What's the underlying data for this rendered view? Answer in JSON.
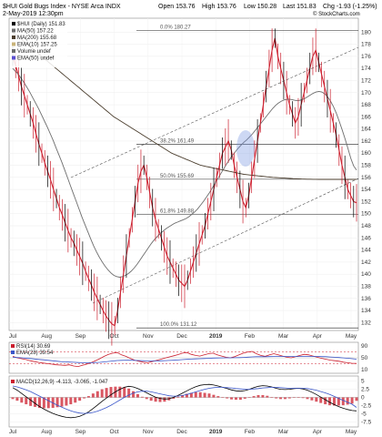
{
  "chart_data": [
    {
      "type": "line",
      "title": "$HUI Gold Bugs Index - NYSE Arca INDX",
      "subtitle": "2-May-2019 12:30pm",
      "watermark": "© StockCharts.com",
      "quote": {
        "open": "Open 153.76",
        "high": "High 153.76",
        "low": "Low 150.28",
        "last": "Last 151.83",
        "chg": "Chg -1.93 (-1.25%)"
      },
      "legend": [
        {
          "text": "$HUI (Daily) 151.83",
          "color": "#000000"
        },
        {
          "text": "MA(50) 157.22",
          "color": "#6d6d6d"
        },
        {
          "text": "MA(200) 155.68",
          "color": "#4b3e2e"
        },
        {
          "text": "EMA(10) 157.25",
          "color": "#c9b47a"
        },
        {
          "text": "Volume undef",
          "color": "#6d6d6d"
        },
        {
          "text": "EMA(50) undef",
          "color": "#5a4fcf"
        }
      ],
      "fib_labels": [
        {
          "text": "0.0% 180.27",
          "value": 180.27
        },
        {
          "text": "38.2% 161.49",
          "value": 161.49
        },
        {
          "text": "50.0% 155.69",
          "value": 155.69
        },
        {
          "text": "61.8% 149.88",
          "value": 149.88
        },
        {
          "text": "100.0% 131.12",
          "value": 131.12
        }
      ],
      "y_ticks": [
        132,
        134,
        136,
        138,
        140,
        142,
        144,
        146,
        148,
        150,
        152,
        154,
        156,
        158,
        160,
        162,
        164,
        166,
        168,
        170,
        172,
        174,
        176,
        178,
        180
      ],
      "ylim": [
        131,
        182
      ],
      "x_labels": [
        "Jul",
        "Aug",
        "Sep",
        "Oct",
        "Nov",
        "Dec",
        "2019",
        "Feb",
        "Mar",
        "Apr",
        "May"
      ],
      "series": [
        {
          "name": "$HUI (Daily) 151.83",
          "color": "#cc1f2e",
          "values": [
            176,
            174.5,
            172.8,
            171,
            169.5,
            168,
            166.5,
            165,
            163.2,
            161.5,
            160,
            158.4,
            157,
            155.6,
            154,
            152.5,
            151,
            149.8,
            148.5,
            147.2,
            146,
            145.1,
            144,
            142.9,
            141.8,
            140.5,
            139.3,
            138.2,
            137,
            136,
            135,
            134,
            133.1,
            132.4,
            131.8,
            131.5,
            134,
            137,
            140,
            143,
            146,
            149,
            152,
            155,
            157,
            158,
            156,
            153.5,
            151,
            149,
            147.5,
            146,
            144.5,
            143,
            142,
            141,
            140,
            139,
            138.5,
            138,
            139,
            140.5,
            142,
            143.5,
            145,
            146.5,
            148,
            150,
            152,
            154,
            156,
            158,
            160,
            161,
            162,
            160.5,
            158,
            156,
            154,
            152,
            151,
            153,
            156,
            159,
            162,
            165,
            168,
            171,
            174,
            177,
            179,
            176,
            174,
            172,
            170,
            168,
            166.5,
            165,
            166,
            168,
            170,
            172,
            174,
            176,
            177,
            175,
            173,
            171,
            169,
            167,
            165,
            163,
            160.5,
            158,
            156,
            154,
            153,
            152,
            151.8
          ]
        },
        {
          "name": "MA(50) 157.22",
          "color": "#6d6d6d",
          "values": [
            174,
            173.5,
            173,
            172.3,
            171.6,
            170.8,
            170,
            169.1,
            168.2,
            167.3,
            166.3,
            165.3,
            164.3,
            163.2,
            162.1,
            160.9,
            159.7,
            158.5,
            157.2,
            155.9,
            154.6,
            153.3,
            152,
            150.7,
            149.4,
            148.2,
            147,
            145.8,
            144.7,
            143.7,
            142.8,
            142,
            141.3,
            140.7,
            140.2,
            139.8,
            139.6,
            139.5,
            139.6,
            139.8,
            140.1,
            140.5,
            141,
            141.6,
            142.3,
            143,
            143.7,
            144.4,
            145.1,
            145.7,
            146.2,
            146.7,
            147.1,
            147.5,
            147.8,
            148.1,
            148.4,
            148.6,
            148.8,
            149,
            149.2,
            149.5,
            149.9,
            150.3,
            150.8,
            151.4,
            152,
            152.7,
            153.4,
            154.2,
            155,
            155.8,
            156.6,
            157.4,
            158.2,
            158.9,
            159.6,
            160.2,
            160.8,
            161.3,
            161.8,
            162.2,
            162.7,
            163.2,
            163.8,
            164.4,
            165,
            165.6,
            166.2,
            166.8,
            167.4,
            167.9,
            168.3,
            168.6,
            168.8,
            168.9,
            168.9,
            168.8,
            168.7,
            168.7,
            168.8,
            169,
            169.3,
            169.6,
            169.9,
            170.1,
            170.2,
            170.1,
            169.8,
            169.3,
            168.6,
            167.7,
            166.6,
            165.3,
            163.9,
            162.4,
            160.8,
            159.2,
            157.9,
            157.2
          ]
        },
        {
          "name": "MA(200) 155.68",
          "color": "#4b3e2e",
          "values": [
            180,
            179.6,
            179.2,
            178.8,
            178.4,
            178,
            177.6,
            177.2,
            176.8,
            176.4,
            176,
            175.6,
            175.2,
            174.8,
            174.4,
            174,
            173.6,
            173.2,
            172.8,
            172.4,
            172,
            171.6,
            171.2,
            170.8,
            170.4,
            170,
            169.6,
            169.2,
            168.8,
            168.4,
            168,
            167.6,
            167.2,
            166.8,
            166.4,
            166,
            165.7,
            165.4,
            165.1,
            164.8,
            164.5,
            164.2,
            163.9,
            163.6,
            163.3,
            163,
            162.7,
            162.4,
            162.1,
            161.8,
            161.5,
            161.2,
            160.9,
            160.6,
            160.3,
            160,
            159.8,
            159.6,
            159.4,
            159.2,
            159,
            158.8,
            158.6,
            158.4,
            158.2,
            158,
            157.9,
            157.8,
            157.7,
            157.6,
            157.5,
            157.4,
            157.3,
            157.2,
            157.1,
            157,
            156.9,
            156.8,
            156.7,
            156.6,
            156.5,
            156.45,
            156.4,
            156.35,
            156.3,
            156.25,
            156.2,
            156.15,
            156.1,
            156.05,
            156,
            155.97,
            155.94,
            155.91,
            155.88,
            155.85,
            155.82,
            155.8,
            155.78,
            155.76,
            155.74,
            155.72,
            155.7,
            155.7,
            155.69,
            155.69,
            155.68,
            155.68,
            155.68,
            155.68,
            155.68,
            155.68,
            155.68,
            155.68,
            155.68,
            155.68,
            155.68,
            155.68,
            155.68,
            155.68
          ]
        }
      ]
    },
    {
      "type": "line",
      "title": "RSI(14) 30.69",
      "legend": [
        {
          "text": "RSI(14) 30.69",
          "color": "#cc1f2e"
        },
        {
          "text": "EMA(28) 39.54",
          "color": "#3a56c9"
        }
      ],
      "y_ticks": [
        10,
        50,
        90
      ],
      "ylim": [
        0,
        100
      ],
      "series": [
        {
          "name": "RSI(14) 30.69",
          "color": "#cc1f2e",
          "values": [
            55,
            50,
            47,
            44,
            40,
            37,
            34,
            32,
            30,
            28,
            26,
            25,
            24,
            26,
            22,
            20,
            24,
            28,
            33,
            40,
            47,
            55,
            62,
            66,
            68,
            60,
            55,
            48,
            42,
            38,
            35,
            33,
            37,
            41,
            45,
            49,
            53,
            57,
            61,
            66,
            68,
            62,
            58,
            56,
            60,
            64,
            66,
            60,
            56,
            52,
            50,
            54,
            60,
            66,
            70,
            72,
            64,
            58,
            55,
            60,
            64,
            60,
            56,
            52,
            50,
            54,
            58,
            62,
            60,
            56,
            52,
            48,
            45,
            42,
            40,
            38,
            35,
            33,
            31,
            30.69
          ]
        },
        {
          "name": "EMA(28) 39.54",
          "color": "#3a56c9",
          "values": [
            52,
            51,
            50,
            49,
            47.5,
            46,
            44.5,
            43,
            41.5,
            40,
            38.5,
            37,
            36,
            35.4,
            34.6,
            33.7,
            33.2,
            33,
            33.1,
            33.6,
            34.5,
            35.9,
            37.5,
            39,
            40.5,
            41.3,
            41.8,
            41.7,
            41.3,
            40.7,
            40,
            39.3,
            39.2,
            39.3,
            39.6,
            40.2,
            40.9,
            41.7,
            42.6,
            43.7,
            44.8,
            45.6,
            46.3,
            46.8,
            47.4,
            48.2,
            49,
            49.5,
            49.8,
            49.9,
            50,
            50.2,
            50.7,
            51.4,
            52.3,
            53.2,
            53.6,
            53.8,
            53.9,
            54.1,
            54.5,
            54.7,
            54.8,
            54.6,
            54.4,
            54.3,
            54.4,
            54.6,
            54.8,
            54.8,
            54.6,
            54.2,
            53.7,
            52.9,
            52,
            51,
            49.8,
            48.4,
            46.9,
            45.3
          ]
        }
      ]
    },
    {
      "type": "line",
      "title": "MACD(12,26,9) -4.113, -3.065, -1.047",
      "legend": [
        {
          "text": "MACD(12,26,9) -4.113, -3.065, -1.047",
          "color": "#cc1f2e"
        }
      ],
      "y_ticks": [
        5,
        2.5,
        0,
        -2.5,
        -5,
        -7.5
      ],
      "ylim": [
        -8.5,
        6
      ],
      "series": [
        {
          "name": "MACD",
          "color": "#000000",
          "values": [
            3,
            2.2,
            1.2,
            0.2,
            -0.8,
            -1.8,
            -2.8,
            -3.6,
            -4.3,
            -4.9,
            -5.4,
            -5.8,
            -6.1,
            -6.2,
            -6.1,
            -5.8,
            -5.2,
            -4.4,
            -3.4,
            -2.3,
            -1.2,
            -0.2,
            0.8,
            1.7,
            2.5,
            3.1,
            3.4,
            3.2,
            2.7,
            2.1,
            1.4,
            0.7,
            0.1,
            -0.3,
            -0.5,
            -0.4,
            0,
            0.6,
            1.3,
            2,
            2.7,
            3.3,
            3.7,
            3.9,
            4,
            3.8,
            3.5,
            3.1,
            2.7,
            2.3,
            2,
            1.9,
            2.1,
            2.5,
            3,
            3.4,
            3.6,
            3.5,
            3.2,
            2.8,
            2.5,
            2.4,
            2.5,
            2.7,
            2.8,
            2.6,
            2.2,
            1.6,
            0.9,
            0.1,
            -0.7,
            -1.5,
            -2.2,
            -2.8,
            -3.3,
            -3.7,
            -4,
            -4.113
          ]
        },
        {
          "name": "Signal",
          "color": "#3a56c9",
          "values": [
            3.5,
            3.2,
            2.8,
            2.3,
            1.8,
            1.1,
            0.4,
            -0.3,
            -1,
            -1.7,
            -2.4,
            -3,
            -3.6,
            -4.1,
            -4.5,
            -4.8,
            -4.9,
            -4.8,
            -4.6,
            -4.2,
            -3.7,
            -3.1,
            -2.4,
            -1.6,
            -0.8,
            0,
            0.7,
            1.3,
            1.7,
            1.9,
            1.9,
            1.7,
            1.4,
            1.1,
            0.8,
            0.5,
            0.4,
            0.4,
            0.6,
            0.9,
            1.3,
            1.7,
            2.1,
            2.5,
            2.8,
            3,
            3.1,
            3.1,
            3,
            2.9,
            2.7,
            2.6,
            2.5,
            2.5,
            2.6,
            2.7,
            2.9,
            3,
            3.1,
            3.1,
            3,
            2.9,
            2.8,
            2.8,
            2.8,
            2.8,
            2.7,
            2.5,
            2.2,
            1.8,
            1.4,
            0.9,
            0.3,
            -0.3,
            -0.9,
            -1.5,
            -2.1,
            -3.065
          ]
        }
      ]
    }
  ]
}
